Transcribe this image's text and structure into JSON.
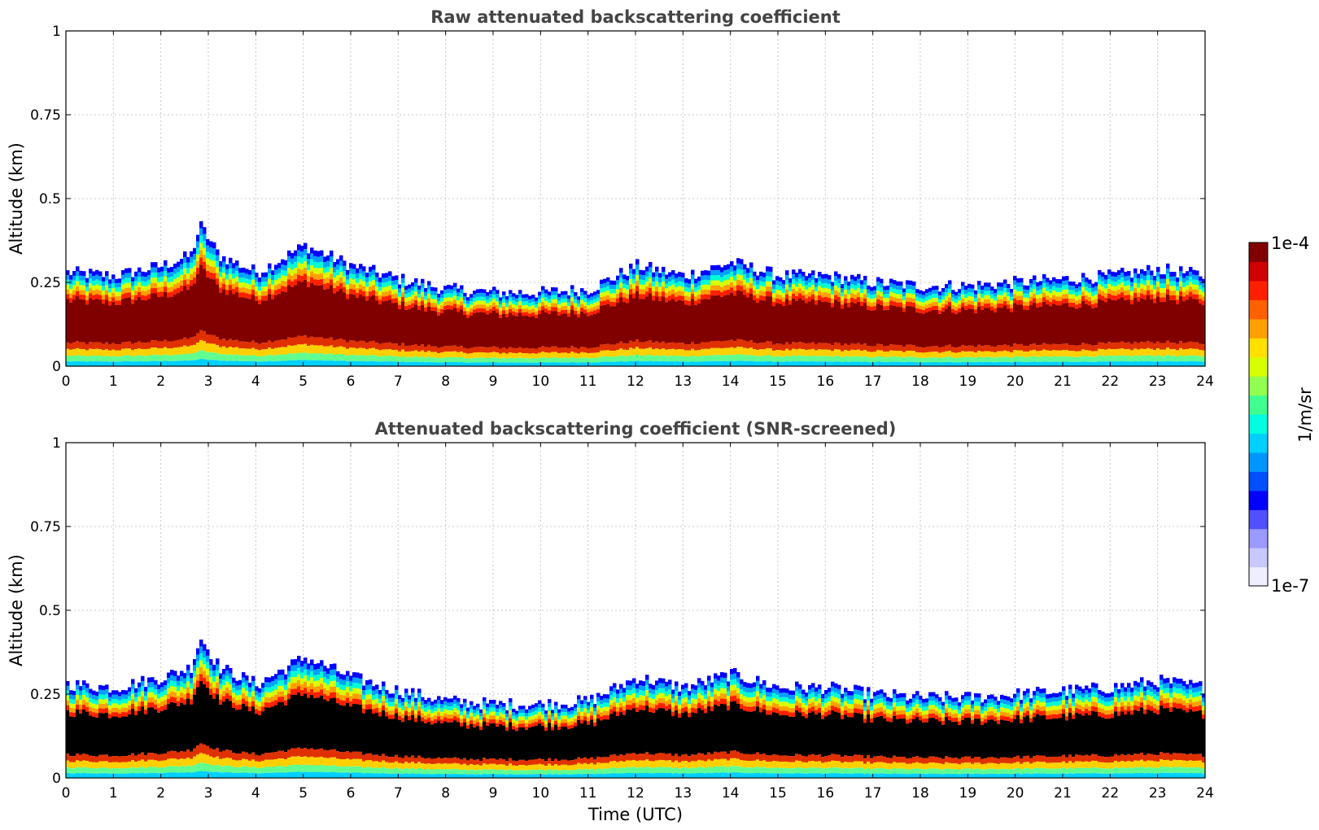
{
  "chart_data": [
    {
      "type": "heatmap",
      "title": "Raw attenuated backscattering coefficient",
      "xlabel": "",
      "ylabel": "Altitude (km)",
      "xlim": [
        0,
        24
      ],
      "ylim": [
        0,
        1
      ],
      "xticks": [
        "0",
        "1",
        "2",
        "3",
        "4",
        "5",
        "6",
        "7",
        "8",
        "9",
        "10",
        "11",
        "12",
        "13",
        "14",
        "15",
        "16",
        "17",
        "18",
        "19",
        "20",
        "21",
        "22",
        "23",
        "24"
      ],
      "yticks": [
        "0",
        "0.25",
        "0.5",
        "0.75",
        "1"
      ],
      "grid": true,
      "layer_top_km": {
        "time_utc": [
          0,
          1,
          2,
          2.6,
          2.8,
          3.2,
          4,
          5,
          6,
          7,
          8,
          9,
          10,
          11,
          12,
          13,
          14,
          15,
          16,
          17,
          18,
          19,
          20,
          21,
          22,
          23,
          24
        ],
        "value": [
          0.28,
          0.27,
          0.3,
          0.33,
          0.42,
          0.33,
          0.28,
          0.36,
          0.3,
          0.26,
          0.23,
          0.22,
          0.22,
          0.23,
          0.3,
          0.27,
          0.31,
          0.27,
          0.27,
          0.25,
          0.24,
          0.24,
          0.25,
          0.26,
          0.27,
          0.29,
          0.27
        ]
      }
    },
    {
      "type": "heatmap",
      "title": "Attenuated backscattering coefficient (SNR-screened)",
      "xlabel": "Time (UTC)",
      "ylabel": "Altitude (km)",
      "xlim": [
        0,
        24
      ],
      "ylim": [
        0,
        1
      ],
      "xticks": [
        "0",
        "1",
        "2",
        "3",
        "4",
        "5",
        "6",
        "7",
        "8",
        "9",
        "10",
        "11",
        "12",
        "13",
        "14",
        "15",
        "16",
        "17",
        "18",
        "19",
        "20",
        "21",
        "22",
        "23",
        "24"
      ],
      "yticks": [
        "0",
        "0.25",
        "0.5",
        "0.75",
        "1"
      ],
      "grid": true,
      "layer_top_km": {
        "time_utc": [
          0,
          1,
          2,
          2.6,
          2.8,
          3.2,
          4,
          5,
          6,
          7,
          8,
          9,
          10,
          11,
          12,
          13,
          14,
          15,
          16,
          17,
          18,
          19,
          20,
          21,
          22,
          23,
          24
        ],
        "value": [
          0.28,
          0.27,
          0.3,
          0.33,
          0.42,
          0.33,
          0.28,
          0.36,
          0.3,
          0.26,
          0.23,
          0.22,
          0.22,
          0.23,
          0.3,
          0.27,
          0.31,
          0.27,
          0.27,
          0.25,
          0.24,
          0.24,
          0.25,
          0.26,
          0.27,
          0.29,
          0.27
        ]
      }
    }
  ],
  "colorbar": {
    "label": "1/m/sr",
    "max_label": "1e-4",
    "min_label": "1e-7",
    "colors": [
      "#eeeeff",
      "#c8c8ff",
      "#9a9aff",
      "#5050ff",
      "#0000ff",
      "#0050ff",
      "#0096ff",
      "#00d0ff",
      "#00ffe0",
      "#40ff90",
      "#90ff50",
      "#d8ff00",
      "#ffe000",
      "#ffa000",
      "#ff6000",
      "#ff2000",
      "#d00000",
      "#800000"
    ]
  }
}
